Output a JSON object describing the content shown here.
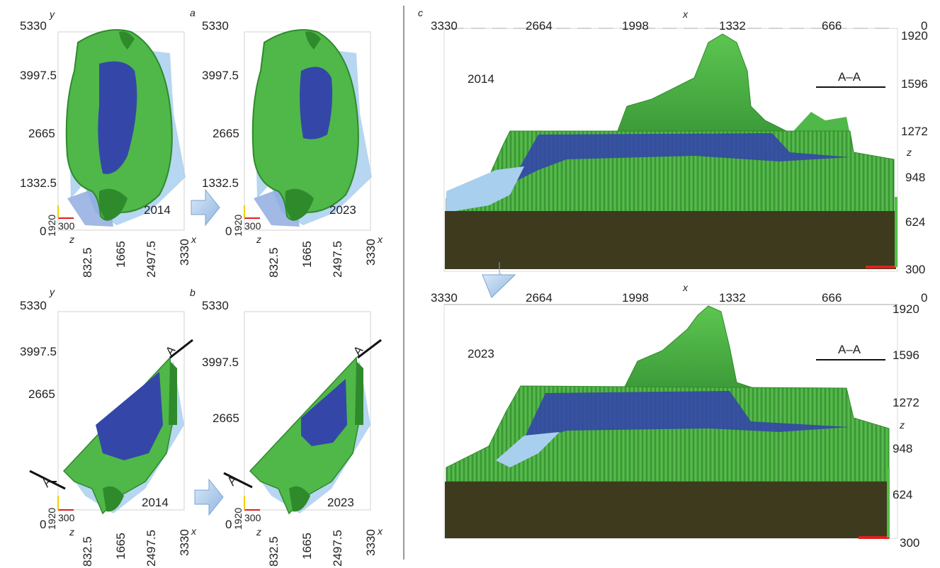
{
  "panels": {
    "a": {
      "letter": "a",
      "axis_x": "x",
      "axis_y": "y",
      "axis_z": "z",
      "y_ticks": [
        "5330",
        "3997.5",
        "2665",
        "1332.5",
        "0"
      ],
      "x_ticks": [
        "832.5",
        "1665",
        "2497.5",
        "3330"
      ],
      "z_ticks": [
        "1920",
        "300"
      ],
      "years": [
        "2014",
        "2023"
      ]
    },
    "b": {
      "letter": "b",
      "axis_x": "x",
      "axis_y": "y",
      "axis_z": "z",
      "y_ticks": [
        "5330",
        "3997.5",
        "2665",
        "0"
      ],
      "x_ticks": [
        "832.5",
        "1665",
        "2497.5",
        "3330"
      ],
      "z_ticks": [
        "1920",
        "300"
      ],
      "years": [
        "2014",
        "2023"
      ],
      "section_marker": "A"
    },
    "c": {
      "letter": "c",
      "axis_x": "x",
      "axis_z": "z",
      "x_ticks": [
        "3330",
        "2664",
        "1998",
        "1332",
        "666",
        "0"
      ],
      "z_ticks": [
        "1920",
        "1596",
        "1272",
        "948",
        "624",
        "300"
      ],
      "years": [
        "2014",
        "2023"
      ],
      "section_label": "A–A"
    }
  },
  "colors": {
    "terrain": "#4fb848",
    "terrain_dark": "#2f8a2c",
    "lake": "#3447a8",
    "ice": "#a9cfee",
    "base_block": "#3d3a1e",
    "arrow": "#b8d3ef",
    "axis_red": "#e02020",
    "axis_green": "#52c046",
    "axis_yellow": "#f0d000"
  }
}
